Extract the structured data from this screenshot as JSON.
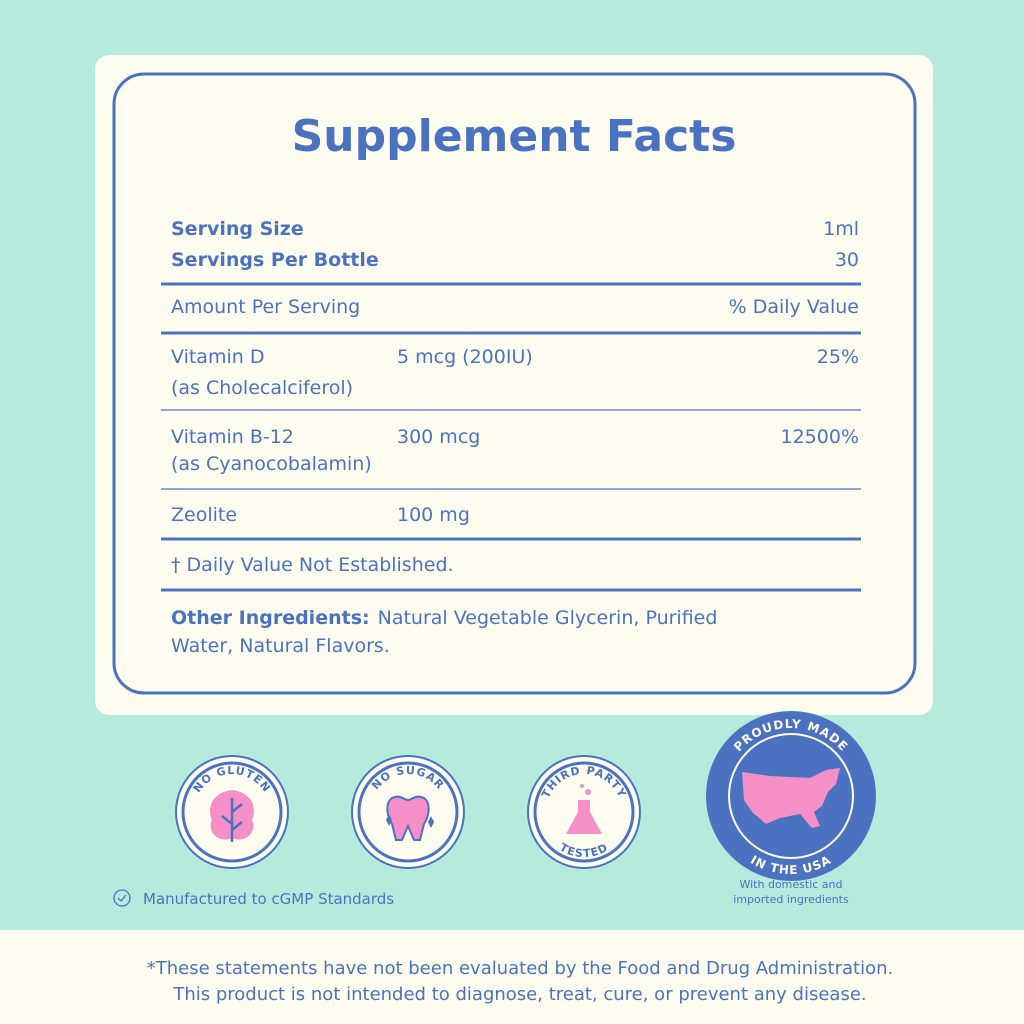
{
  "panel": {
    "title": "Supplement Facts",
    "serving_size": {
      "label": "Serving Size",
      "value": "1ml"
    },
    "servings_per_bottle": {
      "label": "Servings Per Bottle",
      "value": "30"
    },
    "header": {
      "amount": "Amount Per Serving",
      "daily_value": "% Daily Value"
    },
    "rows": [
      {
        "name": "Vitamin D",
        "source": "(as Cholecalciferol)",
        "amount": "5 mcg (200IU)",
        "daily_value": "25%"
      },
      {
        "name": "Vitamin B-12",
        "source": "(as Cyanocobalamin)",
        "amount": "300 mcg",
        "daily_value": "12500%"
      },
      {
        "name": "Zeolite",
        "amount": "100 mg"
      }
    ],
    "footnote": "† Daily Value Not Established.",
    "other_ingredients": {
      "label": "Other Ingredients:",
      "lines": [
        "Natural Vegetable Glycerin, Purified",
        "Water, Natural Flavors."
      ]
    }
  },
  "badges": [
    {
      "top": "NO GLUTEN"
    },
    {
      "top": "NO SUGAR"
    },
    {
      "top": "THIRD PARTY",
      "bottom": "TESTED"
    },
    {
      "top": "PROUDLY MADE",
      "bottom": "IN THE USA"
    }
  ],
  "manufactured": "Manufactured to cGMP Standards",
  "usa_note": [
    "With domestic and",
    "imported ingredients"
  ],
  "disclaimer": [
    "*These statements have not been evaluated by the Food and Drug Administration.",
    "This product is not intended to diagnose, treat, cure, or prevent any disease."
  ]
}
